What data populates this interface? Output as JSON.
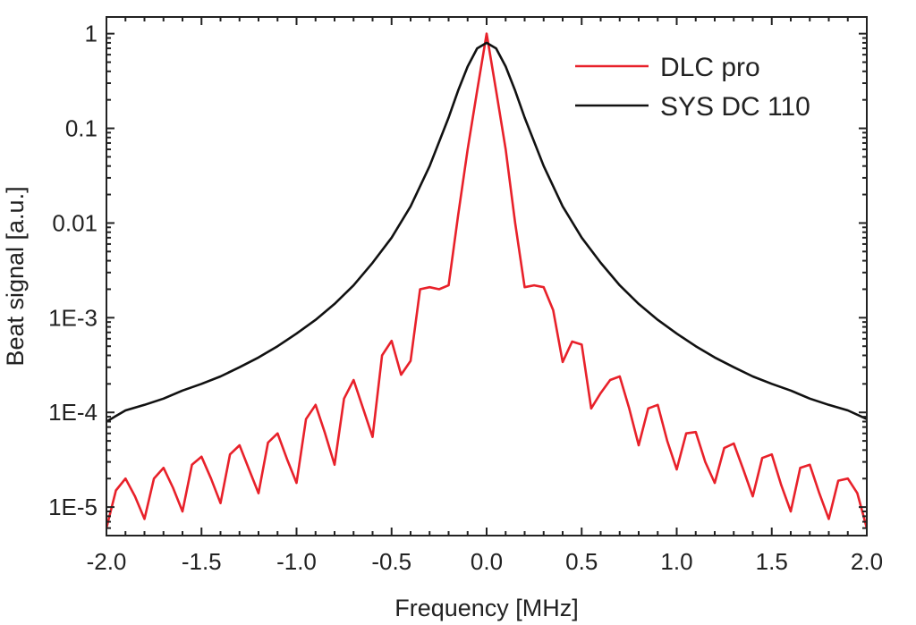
{
  "chart_data": {
    "type": "line",
    "xlabel": "Frequency [MHz]",
    "ylabel": "Beat signal [a.u.]",
    "xlim": [
      -2.0,
      2.0
    ],
    "ylim": [
      5e-06,
      1.5
    ],
    "yscale": "log",
    "grid": false,
    "legend_position": "top-right",
    "x_ticks": [
      -2.0,
      -1.5,
      -1.0,
      -0.5,
      0.0,
      0.5,
      1.0,
      1.5,
      2.0
    ],
    "x_tick_labels": [
      "-2.0",
      "-1.5",
      "-1.0",
      "-0.5",
      "0.0",
      "0.5",
      "1.0",
      "1.5",
      "2.0"
    ],
    "y_ticks": [
      1e-05,
      0.0001,
      0.001,
      0.01,
      0.1,
      1
    ],
    "y_tick_labels": [
      "1E-5",
      "1E-4",
      "1E-3",
      "0.01",
      "0.1",
      "1"
    ],
    "series": [
      {
        "name": "DLC pro",
        "color": "#e8212a",
        "x": [
          -2.0,
          -1.95,
          -1.9,
          -1.85,
          -1.8,
          -1.75,
          -1.7,
          -1.65,
          -1.6,
          -1.55,
          -1.5,
          -1.45,
          -1.4,
          -1.35,
          -1.3,
          -1.25,
          -1.2,
          -1.15,
          -1.1,
          -1.05,
          -1.0,
          -0.95,
          -0.9,
          -0.85,
          -0.8,
          -0.75,
          -0.7,
          -0.65,
          -0.6,
          -0.55,
          -0.5,
          -0.45,
          -0.4,
          -0.35,
          -0.3,
          -0.25,
          -0.2,
          -0.15,
          -0.1,
          -0.05,
          0.0,
          0.05,
          0.1,
          0.15,
          0.2,
          0.25,
          0.3,
          0.35,
          0.4,
          0.45,
          0.5,
          0.55,
          0.6,
          0.65,
          0.7,
          0.75,
          0.8,
          0.85,
          0.9,
          0.95,
          1.0,
          1.05,
          1.1,
          1.15,
          1.2,
          1.25,
          1.3,
          1.35,
          1.4,
          1.45,
          1.5,
          1.55,
          1.6,
          1.65,
          1.7,
          1.75,
          1.8,
          1.85,
          1.9,
          1.95,
          2.0
        ],
        "y": [
          6e-06,
          1.5e-05,
          2e-05,
          1.3e-05,
          7.5e-06,
          2e-05,
          2.6e-05,
          1.6e-05,
          9e-06,
          2.8e-05,
          3.4e-05,
          2e-05,
          1.1e-05,
          3.6e-05,
          4.5e-05,
          2.5e-05,
          1.4e-05,
          4.8e-05,
          6e-05,
          3.2e-05,
          1.8e-05,
          8.5e-05,
          0.00012,
          6e-05,
          2.8e-05,
          0.00014,
          0.00022,
          0.00011,
          5.5e-05,
          0.0004,
          0.00057,
          0.00025,
          0.00035,
          0.002,
          0.0021,
          0.002,
          0.0022,
          0.012,
          0.06,
          0.25,
          1.0,
          0.25,
          0.06,
          0.01,
          0.0021,
          0.0022,
          0.0021,
          0.0012,
          0.00034,
          0.00056,
          0.00052,
          0.00011,
          0.00016,
          0.00022,
          0.00024,
          0.00011,
          4.5e-05,
          0.00011,
          0.00012,
          5e-05,
          2.5e-05,
          6e-05,
          6.2e-05,
          3e-05,
          1.8e-05,
          4.2e-05,
          4.7e-05,
          2.5e-05,
          1.3e-05,
          3.3e-05,
          3.6e-05,
          1.7e-05,
          9e-06,
          2.6e-05,
          2.8e-05,
          1.4e-05,
          7.5e-06,
          1.9e-05,
          2e-05,
          1.4e-05,
          6e-06
        ]
      },
      {
        "name": "SYS DC 110",
        "color": "#111111",
        "x": [
          -2.0,
          -1.9,
          -1.8,
          -1.7,
          -1.6,
          -1.5,
          -1.4,
          -1.3,
          -1.2,
          -1.1,
          -1.0,
          -0.9,
          -0.8,
          -0.7,
          -0.6,
          -0.5,
          -0.4,
          -0.3,
          -0.2,
          -0.15,
          -0.1,
          -0.05,
          0.0,
          0.05,
          0.1,
          0.15,
          0.2,
          0.3,
          0.4,
          0.5,
          0.6,
          0.7,
          0.8,
          0.9,
          1.0,
          1.1,
          1.2,
          1.3,
          1.4,
          1.5,
          1.6,
          1.7,
          1.8,
          1.9,
          2.0
        ],
        "y": [
          8e-05,
          0.000105,
          0.00012,
          0.00014,
          0.00017,
          0.0002,
          0.00024,
          0.0003,
          0.00038,
          0.0005,
          0.00068,
          0.00095,
          0.0014,
          0.0022,
          0.0038,
          0.007,
          0.015,
          0.04,
          0.13,
          0.25,
          0.45,
          0.7,
          0.8,
          0.7,
          0.45,
          0.25,
          0.13,
          0.04,
          0.015,
          0.007,
          0.0038,
          0.0022,
          0.0014,
          0.00095,
          0.00068,
          0.0005,
          0.00038,
          0.0003,
          0.00024,
          0.0002,
          0.00017,
          0.00014,
          0.00012,
          0.000105,
          8.5e-05
        ]
      }
    ]
  }
}
